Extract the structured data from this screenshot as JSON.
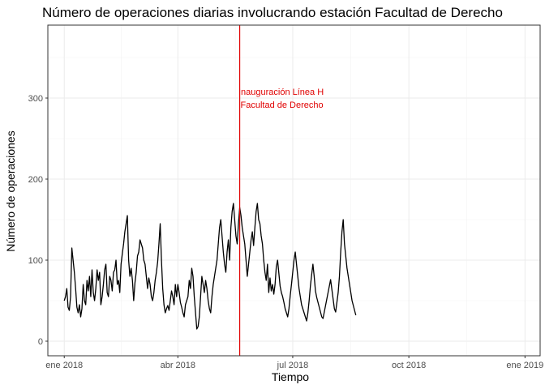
{
  "chart_data": {
    "type": "line",
    "title": "Número de operaciones diarias involucrando estación Facultad de Derecho",
    "xlabel": "Tiempo",
    "ylabel": "Número de operaciones",
    "xlim": [
      "2017-12-19",
      "2019-01-13"
    ],
    "ylim": [
      -18,
      390
    ],
    "x_ticks": [
      {
        "date": "2018-01-01",
        "label": "ene 2018"
      },
      {
        "date": "2018-04-01",
        "label": "abr 2018"
      },
      {
        "date": "2018-07-01",
        "label": "jul 2018"
      },
      {
        "date": "2018-10-01",
        "label": "oct 2018"
      },
      {
        "date": "2019-01-01",
        "label": "ene 2019"
      }
    ],
    "y_ticks": [
      0,
      100,
      200,
      300
    ],
    "grid": true,
    "line_color": "#000000",
    "series": [
      {
        "start_date": "2018-01-01",
        "values": [
          50,
          55,
          65,
          42,
          38,
          55,
          115,
          100,
          85,
          65,
          42,
          35,
          45,
          30,
          40,
          70,
          50,
          45,
          75,
          62,
          80,
          55,
          88,
          60,
          50,
          65,
          88,
          75,
          85,
          45,
          55,
          70,
          88,
          95,
          60,
          55,
          80,
          75,
          62,
          85,
          88,
          100,
          70,
          75,
          60,
          95,
          108,
          120,
          135,
          145,
          155,
          100,
          80,
          90,
          75,
          50,
          72,
          85,
          105,
          110,
          125,
          120,
          115,
          100,
          95,
          80,
          65,
          78,
          70,
          55,
          50,
          60,
          75,
          85,
          98,
          120,
          145,
          100,
          65,
          45,
          35,
          40,
          44,
          38,
          50,
          62,
          55,
          45,
          70,
          55,
          70,
          60,
          48,
          42,
          35,
          30,
          45,
          50,
          55,
          75,
          65,
          90,
          80,
          55,
          35,
          15,
          18,
          30,
          55,
          80,
          70,
          60,
          75,
          65,
          50,
          40,
          35,
          55,
          70,
          80,
          90,
          100,
          120,
          140,
          150,
          130,
          110,
          95,
          85,
          110,
          125,
          100,
          140,
          160,
          170,
          150,
          130,
          120,
          145,
          165,
          155,
          140,
          130,
          120,
          100,
          80,
          95,
          110,
          125,
          135,
          118,
          140,
          160,
          170,
          150,
          145,
          130,
          120,
          100,
          85,
          75,
          95,
          60,
          78,
          62,
          70,
          58,
          70,
          92,
          100,
          84,
          68,
          60,
          55,
          48,
          40,
          35,
          30,
          40,
          56,
          70,
          85,
          100,
          110,
          95,
          80,
          65,
          55,
          45,
          40,
          35,
          30,
          25,
          35,
          50,
          68,
          82,
          95,
          80,
          62,
          54,
          48,
          42,
          36,
          30,
          28,
          36,
          44,
          52,
          60,
          68,
          76,
          64,
          52,
          40,
          36,
          48,
          60,
          80,
          110,
          135,
          150,
          120,
          105,
          90,
          80,
          70,
          60,
          50,
          44,
          38,
          32
        ]
      }
    ],
    "annotation": {
      "date": "2018-05-20",
      "color": "#e00000",
      "line1": "Inauguración Línea H",
      "line2": "Facultad de Derecho"
    }
  }
}
